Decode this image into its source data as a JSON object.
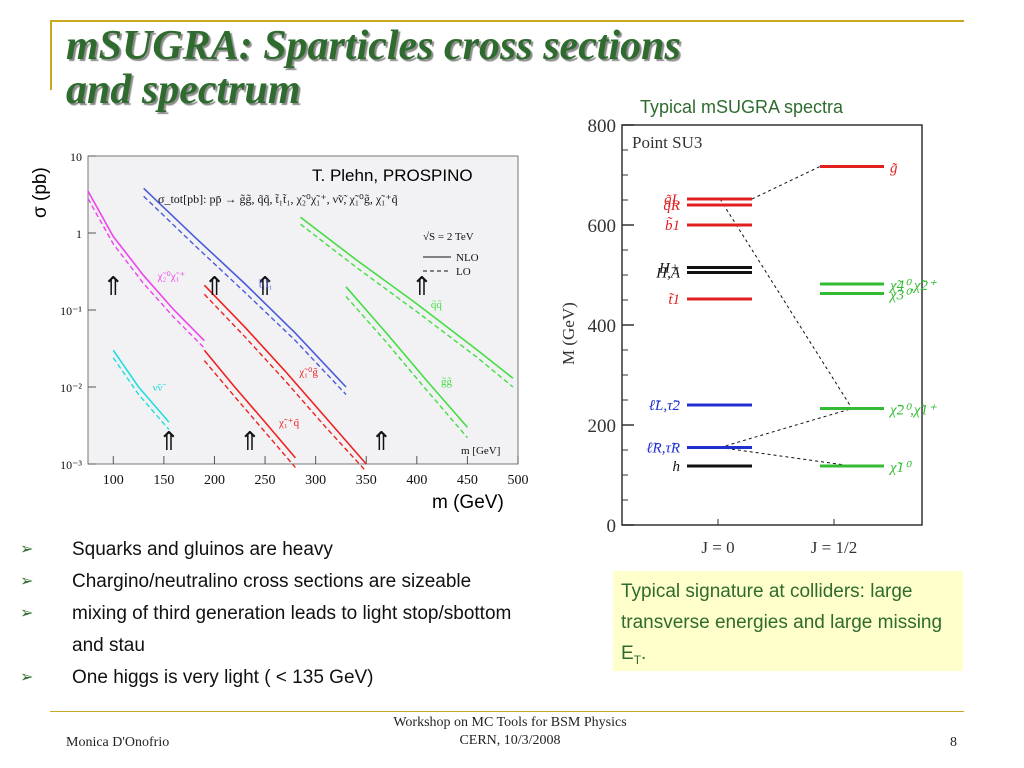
{
  "slide": {
    "title": "mSUGRA: Sparticles cross sections\nand spectrum",
    "spectra_caption": "Typical mSUGRA spectra",
    "sigma_axis_label": "σ (pb)",
    "cross_section_credit": "T. Plehn, PROSPINO",
    "cross_section_xaxis_label": "m (GeV)",
    "bullets": [
      "Squarks and gluinos are heavy",
      "Chargino/neutralino cross sections are sizeable",
      "mixing of third generation leads to light stop/sbottom and stau",
      "One higgs is very light ( < 135 GeV)"
    ],
    "note": {
      "text": "Typical signature at colliders: large transverse energies and large missing E",
      "subscript": "T",
      "suffix": "."
    },
    "footer": {
      "author": "Monica D'Onofrio",
      "event_line1": "Workshop on MC Tools for BSM Physics",
      "event_line2": "CERN, 10/3/2008",
      "page": "8"
    }
  },
  "chart_data": [
    {
      "type": "line",
      "title": "σ_tot[pb]: pp̄ → g̃g̃, q̃q̃, t̃₁t̃₁, χ̃₂⁰χ̃₁⁺, ν̃ν̃, χ̃₁⁰g̃, χ̃₁⁺q̃",
      "xlabel": "m [GeV]",
      "ylabel": "σ (pb)",
      "y_scale": "log",
      "xlim": [
        75,
        500
      ],
      "ylim": [
        0.001,
        10
      ],
      "x_ticks": [
        "100",
        "150",
        "200",
        "250",
        "300",
        "350",
        "400",
        "450",
        "500"
      ],
      "y_ticks": [
        "10",
        "1",
        "10⁻¹",
        "10⁻²",
        "10⁻³"
      ],
      "annotations": [
        "√S = 2 TeV",
        "NLO",
        "LO"
      ],
      "series": [
        {
          "name": "χ̃₂⁰χ̃₁⁺",
          "color": "#ee44ee",
          "x": [
            75,
            100,
            130,
            160,
            190
          ],
          "nlo": [
            3.5,
            0.9,
            0.28,
            0.1,
            0.04
          ],
          "lo": [
            2.8,
            0.72,
            0.22,
            0.08,
            0.032
          ]
        },
        {
          "name": "ν̃ν̃",
          "color": "#22dddd",
          "x": [
            100,
            125,
            155
          ],
          "nlo": [
            0.03,
            0.01,
            0.0035
          ],
          "lo": [
            0.024,
            0.008,
            0.0028
          ]
        },
        {
          "name": "t̃₁t̃₁",
          "color": "#4a5bdc",
          "x": [
            130,
            180,
            230,
            280,
            330
          ],
          "nlo": [
            3.8,
            0.9,
            0.22,
            0.05,
            0.01
          ],
          "lo": [
            3.0,
            0.7,
            0.17,
            0.04,
            0.008
          ]
        },
        {
          "name": "χ̃₁⁰g̃",
          "color": "#ee2222",
          "x": [
            190,
            230,
            270,
            310,
            350
          ],
          "nlo": [
            0.21,
            0.06,
            0.016,
            0.004,
            0.001
          ],
          "lo": [
            0.16,
            0.045,
            0.012,
            0.003,
            0.0008
          ]
        },
        {
          "name": "χ̃₁⁺q̃",
          "color": "#ee2222",
          "x": [
            190,
            220,
            250,
            280
          ],
          "nlo": [
            0.03,
            0.01,
            0.0035,
            0.0012
          ],
          "lo": [
            0.022,
            0.0075,
            0.0026,
            0.0009
          ]
        },
        {
          "name": "g̃g̃",
          "color": "#44dd44",
          "x": [
            330,
            370,
            410,
            450
          ],
          "nlo": [
            0.2,
            0.05,
            0.012,
            0.003
          ],
          "lo": [
            0.15,
            0.038,
            0.009,
            0.0022
          ]
        },
        {
          "name": "q̃q̃",
          "color": "#44dd44",
          "x": [
            285,
            340,
            400,
            460,
            495
          ],
          "nlo": [
            1.6,
            0.45,
            0.12,
            0.03,
            0.013
          ],
          "lo": [
            1.3,
            0.36,
            0.095,
            0.024,
            0.01
          ]
        }
      ],
      "arrows_at_mass": [
        100,
        155,
        200,
        235,
        250,
        365,
        405
      ]
    },
    {
      "type": "bar",
      "title": "Point SU3",
      "ylabel": "M (GeV)",
      "ylim": [
        0,
        800
      ],
      "y_ticks": [
        "0",
        "200",
        "400",
        "600",
        "800"
      ],
      "categories": [
        "J = 0",
        "J = 1/2"
      ],
      "levels_j0": [
        {
          "name": "q̃L",
          "mass": 652,
          "color": "#e02020"
        },
        {
          "name": "q̃R",
          "mass": 640,
          "color": "#e02020"
        },
        {
          "name": "b̃1",
          "mass": 600,
          "color": "#e02020"
        },
        {
          "name": "H+",
          "mass": 515,
          "color": "#111111"
        },
        {
          "name": "H,A",
          "mass": 505,
          "color": "#111111"
        },
        {
          "name": "t̃1",
          "mass": 452,
          "color": "#e02020"
        },
        {
          "name": "ℓ̃L,τ̃2",
          "mass": 240,
          "color": "#2030d0"
        },
        {
          "name": "ℓ̃R,τ̃R",
          "mass": 155,
          "color": "#2030d0"
        },
        {
          "name": "h",
          "mass": 118,
          "color": "#111111"
        }
      ],
      "levels_j12": [
        {
          "name": "g̃",
          "mass": 717,
          "color": "#e02020"
        },
        {
          "name": "χ̃4⁰,χ̃2⁺",
          "mass": 482,
          "color": "#33bb33"
        },
        {
          "name": "χ̃3⁰",
          "mass": 463,
          "color": "#33bb33"
        },
        {
          "name": "χ̃2⁰,χ̃1⁺",
          "mass": 233,
          "color": "#33bb33"
        },
        {
          "name": "χ̃1⁰",
          "mass": 118,
          "color": "#33bb33"
        }
      ]
    }
  ]
}
